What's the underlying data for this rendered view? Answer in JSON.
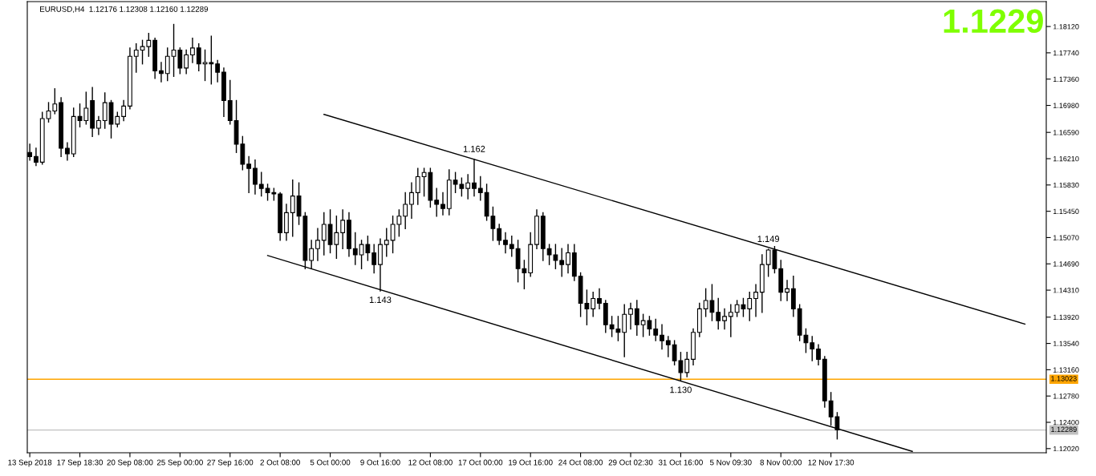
{
  "chart_data": {
    "type": "candlestick",
    "title": "EURUSD,H4  1.12176 1.12308 1.12160 1.12289",
    "categories": [
      "13 Sep 2018",
      null,
      null,
      null,
      null,
      null,
      null,
      null,
      "17 Sep 18:30",
      null,
      null,
      null,
      null,
      null,
      null,
      null,
      "20 Sep 08:00",
      null,
      null,
      null,
      null,
      null,
      null,
      null,
      "25 Sep 00:00",
      null,
      null,
      null,
      null,
      null,
      null,
      null,
      "27 Sep 16:00",
      null,
      null,
      null,
      null,
      null,
      null,
      null,
      "2 Oct 08:00",
      null,
      null,
      null,
      null,
      null,
      null,
      null,
      "5 Oct 00:00",
      null,
      null,
      null,
      null,
      null,
      null,
      null,
      "9 Oct 16:00",
      null,
      null,
      null,
      null,
      null,
      null,
      null,
      "12 Oct 08:00",
      null,
      null,
      null,
      null,
      null,
      null,
      null,
      "17 Oct 00:00",
      null,
      null,
      null,
      null,
      null,
      null,
      null,
      "19 Oct 16:00",
      null,
      null,
      null,
      null,
      null,
      null,
      null,
      "24 Oct 08:00",
      null,
      null,
      null,
      null,
      null,
      null,
      null,
      "29 Oct 02:30",
      null,
      null,
      null,
      null,
      null,
      null,
      null,
      "31 Oct 16:00",
      null,
      null,
      null,
      null,
      null,
      null,
      null,
      "5 Nov 09:30",
      null,
      null,
      null,
      null,
      null,
      null,
      null,
      "8 Nov 00:00",
      null,
      null,
      null,
      null,
      null,
      null,
      null,
      "12 Nov 17:30",
      null,
      null,
      null,
      null,
      null,
      null,
      null,
      null,
      null,
      null,
      null,
      null,
      null,
      null,
      null,
      null,
      null,
      null,
      null,
      null,
      null,
      null,
      null,
      null,
      null,
      null,
      null,
      null,
      null,
      null,
      null,
      null,
      null,
      null
    ],
    "ohlc": [
      [
        1.163,
        1.1642,
        1.1619,
        1.1624
      ],
      [
        1.1624,
        1.1636,
        1.1611,
        1.1616
      ],
      [
        1.1616,
        1.1688,
        1.1613,
        1.1679
      ],
      [
        1.1679,
        1.1702,
        1.1674,
        1.169
      ],
      [
        1.169,
        1.1722,
        1.1686,
        1.17
      ],
      [
        1.1702,
        1.1709,
        1.1624,
        1.1636
      ],
      [
        1.1636,
        1.1644,
        1.1619,
        1.1628
      ],
      [
        1.1628,
        1.1694,
        1.1624,
        1.1682
      ],
      [
        1.1682,
        1.17,
        1.1667,
        1.1676
      ],
      [
        1.1676,
        1.1717,
        1.1671,
        1.1694
      ],
      [
        1.1705,
        1.1724,
        1.1653,
        1.1665
      ],
      [
        1.1665,
        1.1682,
        1.1656,
        1.1676
      ],
      [
        1.1676,
        1.1716,
        1.1665,
        1.1702
      ],
      [
        1.1702,
        1.1705,
        1.1651,
        1.1671
      ],
      [
        1.1671,
        1.1688,
        1.1667,
        1.1682
      ],
      [
        1.1682,
        1.1705,
        1.1676,
        1.1697
      ],
      [
        1.1697,
        1.1781,
        1.1693,
        1.1769
      ],
      [
        1.1769,
        1.1787,
        1.1746,
        1.1778
      ],
      [
        1.1778,
        1.1792,
        1.1758,
        1.1783
      ],
      [
        1.1783,
        1.1802,
        1.1769,
        1.1792
      ],
      [
        1.1792,
        1.1795,
        1.1737,
        1.1748
      ],
      [
        1.1748,
        1.176,
        1.1732,
        1.1744
      ],
      [
        1.1744,
        1.1781,
        1.1734,
        1.1769
      ],
      [
        1.1769,
        1.1815,
        1.174,
        1.1778
      ],
      [
        1.1778,
        1.1781,
        1.1744,
        1.1752
      ],
      [
        1.1752,
        1.1778,
        1.1744,
        1.1771
      ],
      [
        1.1771,
        1.1795,
        1.176,
        1.1781
      ],
      [
        1.1781,
        1.1787,
        1.1748,
        1.1758
      ],
      [
        1.1758,
        1.1778,
        1.1734,
        1.176
      ],
      [
        1.176,
        1.1798,
        1.1729,
        1.1758
      ],
      [
        1.1758,
        1.1763,
        1.1732,
        1.1746
      ],
      [
        1.1746,
        1.1752,
        1.1682,
        1.1705
      ],
      [
        1.1705,
        1.1734,
        1.1671,
        1.1676
      ],
      [
        1.1676,
        1.1705,
        1.163,
        1.1642
      ],
      [
        1.1642,
        1.1653,
        1.1605,
        1.1613
      ],
      [
        1.1613,
        1.1624,
        1.1572,
        1.1607
      ],
      [
        1.1607,
        1.1619,
        1.157,
        1.1584
      ],
      [
        1.1584,
        1.1601,
        1.1567,
        1.1578
      ],
      [
        1.1578,
        1.1584,
        1.1561,
        1.1572
      ],
      [
        1.1572,
        1.1578,
        1.1561,
        1.157
      ],
      [
        1.157,
        1.1572,
        1.1503,
        1.1514
      ],
      [
        1.1514,
        1.1555,
        1.1503,
        1.1543
      ],
      [
        1.1543,
        1.159,
        1.1509,
        1.1567
      ],
      [
        1.1567,
        1.1586,
        1.1526,
        1.1538
      ],
      [
        1.1538,
        1.1543,
        1.1462,
        1.1474
      ],
      [
        1.1474,
        1.1503,
        1.1462,
        1.1491
      ],
      [
        1.1491,
        1.152,
        1.1474,
        1.1503
      ],
      [
        1.1503,
        1.1543,
        1.1482,
        1.1526
      ],
      [
        1.1526,
        1.1547,
        1.1485,
        1.1497
      ],
      [
        1.1497,
        1.1538,
        1.1477,
        1.1514
      ],
      [
        1.1514,
        1.1547,
        1.1491,
        1.1532
      ],
      [
        1.1532,
        1.1543,
        1.148,
        1.1491
      ],
      [
        1.1491,
        1.1514,
        1.1468,
        1.1482
      ],
      [
        1.1482,
        1.1503,
        1.1462,
        1.1497
      ],
      [
        1.1497,
        1.1509,
        1.1474,
        1.1485
      ],
      [
        1.1485,
        1.1497,
        1.1456,
        1.1468
      ],
      [
        1.1468,
        1.1505,
        1.143,
        1.1497
      ],
      [
        1.1497,
        1.152,
        1.148,
        1.1503
      ],
      [
        1.1503,
        1.1538,
        1.1485,
        1.1526
      ],
      [
        1.1526,
        1.1547,
        1.1509,
        1.1538
      ],
      [
        1.1538,
        1.1572,
        1.152,
        1.1555
      ],
      [
        1.1555,
        1.1586,
        1.1535,
        1.1572
      ],
      [
        1.1572,
        1.1607,
        1.1555,
        1.1595
      ],
      [
        1.1595,
        1.1607,
        1.1567,
        1.1601
      ],
      [
        1.1601,
        1.1607,
        1.1551,
        1.1561
      ],
      [
        1.1561,
        1.1578,
        1.1538,
        1.1555
      ],
      [
        1.1555,
        1.1572,
        1.154,
        1.1549
      ],
      [
        1.1549,
        1.1605,
        1.154,
        1.159
      ],
      [
        1.159,
        1.1601,
        1.1572,
        1.1584
      ],
      [
        1.1584,
        1.1593,
        1.1567,
        1.1578
      ],
      [
        1.1578,
        1.1598,
        1.1563,
        1.1586
      ],
      [
        1.1586,
        1.162,
        1.1567,
        1.1578
      ],
      [
        1.1578,
        1.1595,
        1.1561,
        1.1572
      ],
      [
        1.1572,
        1.1584,
        1.1532,
        1.1538
      ],
      [
        1.1538,
        1.1551,
        1.1503,
        1.152
      ],
      [
        1.152,
        1.1526,
        1.1497,
        1.1503
      ],
      [
        1.1503,
        1.1514,
        1.1485,
        1.1497
      ],
      [
        1.1497,
        1.1509,
        1.148,
        1.1491
      ],
      [
        1.1491,
        1.1503,
        1.1443,
        1.1462
      ],
      [
        1.1462,
        1.1474,
        1.1433,
        1.1456
      ],
      [
        1.1456,
        1.1514,
        1.1451,
        1.1497
      ],
      [
        1.1497,
        1.1547,
        1.1491,
        1.1538
      ],
      [
        1.1538,
        1.1543,
        1.1474,
        1.1491
      ],
      [
        1.1491,
        1.1497,
        1.1468,
        1.1482
      ],
      [
        1.1482,
        1.1497,
        1.1462,
        1.1474
      ],
      [
        1.1474,
        1.1491,
        1.1451,
        1.1468
      ],
      [
        1.1468,
        1.1497,
        1.1456,
        1.1485
      ],
      [
        1.1485,
        1.1497,
        1.1445,
        1.1451
      ],
      [
        1.1451,
        1.1456,
        1.1393,
        1.1412
      ],
      [
        1.1412,
        1.1431,
        1.1381,
        1.1404
      ],
      [
        1.1404,
        1.1428,
        1.1393,
        1.1419
      ],
      [
        1.1419,
        1.1433,
        1.1404,
        1.1412
      ],
      [
        1.1412,
        1.1416,
        1.137,
        1.1381
      ],
      [
        1.1381,
        1.1393,
        1.1364,
        1.1375
      ],
      [
        1.1375,
        1.1393,
        1.1358,
        1.137
      ],
      [
        1.137,
        1.141,
        1.1335,
        1.1396
      ],
      [
        1.1396,
        1.1412,
        1.1375,
        1.1404
      ],
      [
        1.1404,
        1.1416,
        1.1366,
        1.1381
      ],
      [
        1.1381,
        1.1396,
        1.1364,
        1.1387
      ],
      [
        1.1387,
        1.1393,
        1.1366,
        1.1375
      ],
      [
        1.1375,
        1.1389,
        1.1358,
        1.1366
      ],
      [
        1.1366,
        1.1381,
        1.1346,
        1.1358
      ],
      [
        1.1358,
        1.1364,
        1.1335,
        1.1352
      ],
      [
        1.1352,
        1.1358,
        1.1323,
        1.1329
      ],
      [
        1.1329,
        1.1341,
        1.13,
        1.1312
      ],
      [
        1.1312,
        1.1341,
        1.1306,
        1.1331
      ],
      [
        1.1331,
        1.1375,
        1.1323,
        1.137
      ],
      [
        1.137,
        1.1412,
        1.1364,
        1.1404
      ],
      [
        1.1404,
        1.1433,
        1.1393,
        1.1416
      ],
      [
        1.1416,
        1.1439,
        1.1387,
        1.1399
      ],
      [
        1.1399,
        1.1419,
        1.1375,
        1.1387
      ],
      [
        1.1387,
        1.1404,
        1.1375,
        1.1393
      ],
      [
        1.1393,
        1.141,
        1.1364,
        1.1399
      ],
      [
        1.1399,
        1.1416,
        1.1393,
        1.141
      ],
      [
        1.141,
        1.1419,
        1.1393,
        1.1404
      ],
      [
        1.1404,
        1.1428,
        1.1387,
        1.1419
      ],
      [
        1.1419,
        1.1439,
        1.1393,
        1.1428
      ],
      [
        1.1428,
        1.1482,
        1.1399,
        1.1468
      ],
      [
        1.1468,
        1.149,
        1.1451,
        1.1489
      ],
      [
        1.1489,
        1.1494,
        1.1456,
        1.1462
      ],
      [
        1.1462,
        1.1474,
        1.1416,
        1.1428
      ],
      [
        1.1428,
        1.1445,
        1.1416,
        1.1433
      ],
      [
        1.1433,
        1.1451,
        1.1393,
        1.1404
      ],
      [
        1.1404,
        1.141,
        1.1358,
        1.1366
      ],
      [
        1.1366,
        1.1375,
        1.1341,
        1.1355
      ],
      [
        1.1355,
        1.1364,
        1.1329,
        1.1346
      ],
      [
        1.1346,
        1.1352,
        1.1323,
        1.1331
      ],
      [
        1.1331,
        1.1335,
        1.1262,
        1.1271
      ],
      [
        1.1271,
        1.1283,
        1.1236,
        1.1248
      ],
      [
        1.1248,
        1.1254,
        1.1216,
        1.1229
      ],
      null,
      null,
      null,
      null,
      null,
      null,
      null,
      null,
      null,
      null,
      null,
      null,
      null,
      null,
      null,
      null,
      null,
      null,
      null,
      null,
      null,
      null,
      null,
      null,
      null,
      null,
      null,
      null,
      null,
      null,
      null,
      null,
      null
    ],
    "series": [
      {
        "type": "line",
        "color": "#000000",
        "values": [
          null,
          null,
          null,
          null,
          null,
          null,
          null,
          null,
          null,
          null,
          null,
          null,
          null,
          null,
          null,
          null,
          null,
          null,
          null,
          null,
          null,
          null,
          null,
          null,
          null,
          null,
          null,
          null,
          null,
          null,
          null,
          null,
          null,
          null,
          null,
          null,
          null,
          null,
          null,
          null,
          null,
          null,
          null,
          null,
          null,
          null,
          null,
          1.1685,
          null,
          null,
          null,
          null,
          null,
          null,
          null,
          null,
          null,
          null,
          null,
          null,
          null,
          null,
          null,
          null,
          null,
          null,
          null,
          null,
          null,
          null,
          null,
          null,
          null,
          null,
          null,
          null,
          null,
          null,
          null,
          null,
          null,
          null,
          null,
          null,
          null,
          null,
          null,
          null,
          null,
          null,
          null,
          null,
          null,
          null,
          null,
          null,
          null,
          null,
          null,
          null,
          null,
          null,
          null,
          null,
          null,
          null,
          null,
          null,
          null,
          null,
          null,
          null,
          null,
          null,
          null,
          null,
          null,
          null,
          null,
          null,
          null,
          null,
          null,
          null,
          null,
          null,
          null,
          null,
          null,
          null,
          null,
          null,
          null,
          null,
          null,
          null,
          null,
          null,
          null,
          null,
          null,
          null,
          null,
          null,
          null,
          null,
          null,
          null,
          null,
          null,
          null,
          null,
          null,
          null,
          null,
          null,
          null,
          null,
          null,
          1.1382,
          null,
          null,
          null
        ]
      },
      {
        "type": "line",
        "color": "#000000",
        "values": [
          null,
          null,
          null,
          null,
          null,
          null,
          null,
          null,
          null,
          null,
          null,
          null,
          null,
          null,
          null,
          null,
          null,
          null,
          null,
          null,
          null,
          null,
          null,
          null,
          null,
          null,
          null,
          null,
          null,
          null,
          null,
          null,
          null,
          null,
          null,
          null,
          null,
          null,
          1.1481,
          null,
          null,
          null,
          null,
          null,
          null,
          null,
          null,
          null,
          null,
          null,
          null,
          null,
          null,
          null,
          null,
          null,
          null,
          null,
          null,
          null,
          null,
          null,
          null,
          null,
          null,
          null,
          null,
          null,
          null,
          null,
          null,
          null,
          null,
          null,
          null,
          null,
          null,
          null,
          null,
          null,
          null,
          null,
          null,
          null,
          null,
          null,
          null,
          null,
          null,
          null,
          null,
          null,
          null,
          null,
          null,
          null,
          null,
          null,
          null,
          null,
          null,
          null,
          null,
          null,
          null,
          null,
          null,
          null,
          null,
          null,
          null,
          null,
          null,
          null,
          null,
          null,
          null,
          null,
          null,
          null,
          null,
          null,
          null,
          null,
          null,
          null,
          null,
          null,
          null,
          null,
          null,
          null,
          null,
          null,
          null,
          null,
          null,
          null,
          null,
          null,
          null,
          1.1198,
          null,
          null,
          null,
          null,
          null,
          null,
          null,
          null,
          null,
          null,
          null,
          null,
          null,
          null,
          null,
          null,
          null,
          null,
          null,
          null,
          null
        ]
      }
    ],
    "ylim": [
      1.1196,
      1.1848
    ],
    "yticks": [
      {
        "value": 1.1202,
        "label": "1.12020"
      },
      {
        "value": 1.124,
        "label": "1.12400"
      },
      {
        "value": 1.1278,
        "label": "1.12780"
      },
      {
        "value": 1.1316,
        "label": "1.13160"
      },
      {
        "value": 1.1354,
        "label": "1.13540"
      },
      {
        "value": 1.1392,
        "label": "1.13920"
      },
      {
        "value": 1.1431,
        "label": "1.14310"
      },
      {
        "value": 1.1469,
        "label": "1.14690"
      },
      {
        "value": 1.1507,
        "label": "1.15070"
      },
      {
        "value": 1.1545,
        "label": "1.15450"
      },
      {
        "value": 1.1583,
        "label": "1.15830"
      },
      {
        "value": 1.1621,
        "label": "1.16210"
      },
      {
        "value": 1.1659,
        "label": "1.16590"
      },
      {
        "value": 1.1698,
        "label": "1.16980"
      },
      {
        "value": 1.1736,
        "label": "1.17360"
      },
      {
        "value": 1.1774,
        "label": "1.17740"
      },
      {
        "value": 1.1812,
        "label": "1.18120"
      }
    ],
    "ref_lines": [
      {
        "axis": "y",
        "value": 1.13023,
        "label": "1.13023",
        "color": "#ffa500"
      },
      {
        "axis": "y",
        "value": 1.12289,
        "label": "1.12289",
        "color": "#c0c0c0"
      }
    ],
    "annotations": [
      "1.1229",
      {
        "text": "1.162",
        "y": 1.162
      },
      {
        "text": "1.143",
        "y": 1.143
      },
      {
        "text": "1.130",
        "y": 1.13
      },
      {
        "text": "1.149",
        "y": 1.149
      }
    ],
    "grid": false,
    "legend": false
  }
}
